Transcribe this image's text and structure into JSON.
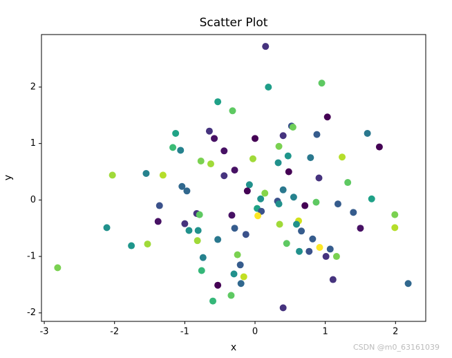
{
  "chart_data": {
    "type": "scatter",
    "title": "Scatter Plot",
    "x_label": "x",
    "y_label": "y",
    "x": [
      0.15,
      0.19,
      0.95,
      -0.53,
      -0.32,
      1.03,
      0.52,
      0.54,
      -0.65,
      -1.13,
      0.88,
      1.6,
      -0.58,
      0.0,
      0.4,
      1.77,
      -1.17,
      -1.06,
      -0.44,
      0.34,
      0.47,
      0.79,
      1.24,
      -0.77,
      -0.63,
      -0.03,
      0.33,
      -0.29,
      0.48,
      -2.03,
      -1.55,
      -1.31,
      -0.44,
      0.91,
      1.32,
      -1.04,
      -0.08,
      -0.97,
      0.4,
      -0.11,
      0.14,
      0.55,
      0.08,
      1.66,
      0.32,
      0.34,
      0.87,
      1.18,
      -1.36,
      0.03,
      0.09,
      0.71,
      1.4,
      -0.83,
      -0.79,
      1.99,
      -0.33,
      0.04,
      0.62,
      -1.38,
      -1.0,
      0.35,
      0.59,
      -2.11,
      1.5,
      1.99,
      -0.29,
      -0.94,
      -0.81,
      0.66,
      -0.13,
      -0.53,
      0.82,
      -0.82,
      -1.53,
      0.45,
      -1.76,
      1.07,
      0.92,
      0.63,
      0.77,
      -0.25,
      1.01,
      1.16,
      -0.74,
      -0.21,
      -2.81,
      -0.76,
      -0.3,
      -0.16,
      1.11,
      -0.53,
      -0.2,
      2.18,
      -0.34,
      -0.6,
      0.4
    ],
    "series": [
      {
        "values": [
          2.72,
          2.0,
          2.07,
          1.74,
          1.58,
          1.47,
          1.31,
          1.29,
          1.22,
          1.18,
          1.16,
          1.18,
          1.09,
          1.09,
          1.14,
          0.94,
          0.93,
          0.88,
          0.87,
          0.95,
          0.78,
          0.75,
          0.76,
          0.69,
          0.64,
          0.73,
          0.66,
          0.53,
          0.5,
          0.44,
          0.47,
          0.44,
          0.43,
          0.39,
          0.31,
          0.24,
          0.27,
          0.16,
          0.18,
          0.16,
          0.12,
          0.05,
          0.02,
          0.02,
          -0.02,
          -0.07,
          -0.04,
          -0.07,
          -0.1,
          -0.15,
          -0.2,
          -0.1,
          -0.22,
          -0.24,
          -0.26,
          -0.26,
          -0.27,
          -0.28,
          -0.37,
          -0.38,
          -0.42,
          -0.43,
          -0.43,
          -0.49,
          -0.5,
          -0.49,
          -0.5,
          -0.54,
          -0.54,
          -0.55,
          -0.61,
          -0.7,
          -0.69,
          -0.72,
          -0.78,
          -0.77,
          -0.81,
          -0.87,
          -0.84,
          -0.91,
          -0.91,
          -0.97,
          -1.0,
          -1.0,
          -1.02,
          -1.15,
          -1.2,
          -1.25,
          -1.31,
          -1.36,
          -1.41,
          -1.51,
          -1.48,
          -1.48,
          -1.69,
          -1.79,
          -1.91
        ],
        "colors": [
          "#46337e",
          "#1f9e89",
          "#5ec962",
          "#1fa187",
          "#5ec962",
          "#440154",
          "#3b528b",
          "#6ece58",
          "#46337e",
          "#20a386",
          "#365c8d",
          "#2a788e",
          "#471164",
          "#440154",
          "#46337e",
          "#440154",
          "#3bbb75",
          "#26828e",
          "#471164",
          "#7ad151",
          "#1f968b",
          "#2a788e",
          "#b5de2b",
          "#7ad151",
          "#a0da39",
          "#a0da39",
          "#21918c",
          "#471164",
          "#440154",
          "#a0da39",
          "#26828e",
          "#b5de2b",
          "#46337e",
          "#46337e",
          "#5ec962",
          "#31688e",
          "#21918c",
          "#31688e",
          "#2a788e",
          "#440154",
          "#86d549",
          "#26828e",
          "#21918c",
          "#1fa187",
          "#3b528b",
          "#21918c",
          "#5ec962",
          "#365c8d",
          "#3b528b",
          "#20a386",
          "#3b528b",
          "#440154",
          "#365c8d",
          "#46337e",
          "#5ec962",
          "#7ad151",
          "#471164",
          "#fde725",
          "#d0e11c",
          "#471164",
          "#46337e",
          "#a0da39",
          "#21918c",
          "#21918c",
          "#471164",
          "#b5de2b",
          "#365c8d",
          "#21918c",
          "#21918c",
          "#365c8d",
          "#3b528b",
          "#2a788e",
          "#365c8d",
          "#a0da39",
          "#a0da39",
          "#5ec962",
          "#1f968b",
          "#365c8d",
          "#fde725",
          "#21918c",
          "#3b528b",
          "#7ad151",
          "#46337e",
          "#7ad151",
          "#26828e",
          "#365c8d",
          "#7ad151",
          "#35b779",
          "#21918c",
          "#c2df23",
          "#46337e",
          "#440154",
          "#31688e",
          "#31688e",
          "#5ec962",
          "#35b779",
          "#46337e"
        ]
      }
    ],
    "xlim": [
      -3.04,
      2.43
    ],
    "ylim": [
      -2.15,
      2.93
    ],
    "xticks": [
      -3,
      -2,
      -1,
      0,
      1,
      2
    ],
    "yticks": [
      -2,
      -1,
      0,
      1,
      2
    ],
    "watermark": "CSDN @m0_63161039"
  }
}
